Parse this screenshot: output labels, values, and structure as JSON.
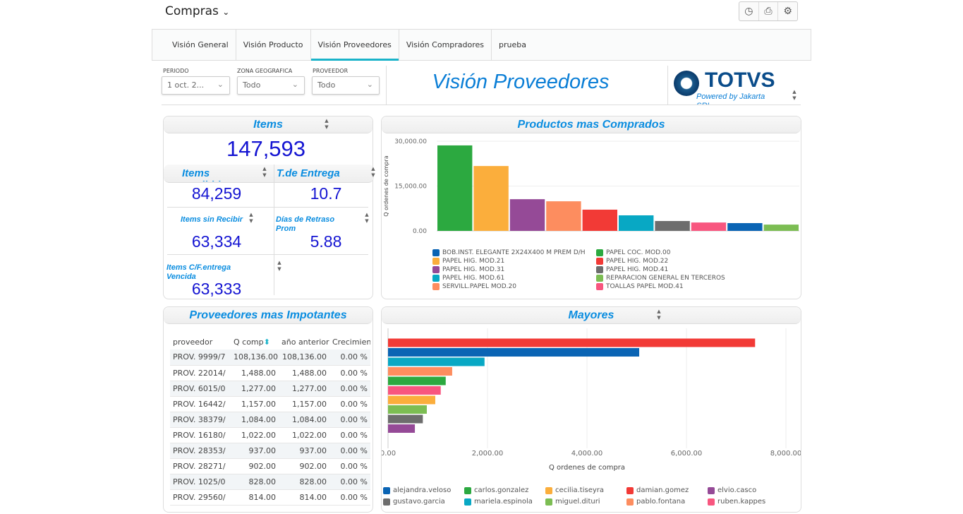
{
  "header": {
    "title": "Compras",
    "chevron": "⌄",
    "toolbar": [
      {
        "icon": "clock-icon",
        "glyph": "◷"
      },
      {
        "icon": "print-icon",
        "glyph": "⎙"
      },
      {
        "icon": "gear-icon",
        "glyph": "⚙"
      }
    ]
  },
  "tabs": [
    {
      "label": "Visión General"
    },
    {
      "label": "Visión Producto"
    },
    {
      "label": "Visión Proveedores",
      "active": true
    },
    {
      "label": "Visión Compradores"
    },
    {
      "label": "prueba"
    }
  ],
  "filters": [
    {
      "label": "PERIODO",
      "value": "1 oct. 2..."
    },
    {
      "label": "ZONA GEOGRAFICA",
      "value": "Todo"
    },
    {
      "label": "PROVEEDOR",
      "value": "Todo"
    }
  ],
  "page_heading": "Visión Proveedores",
  "logo": {
    "text": "TOTVS",
    "tagline": "Powered by Jakarta SRL"
  },
  "kpis": {
    "title": "Items",
    "total": "147,593",
    "items": [
      {
        "label": "Items Recibidos",
        "value": "84,259"
      },
      {
        "label": "T.de Entrega Prom",
        "value": "10.7"
      },
      {
        "label": "Items sin Recibir",
        "value": "63,334"
      },
      {
        "label": "Días de Retraso Prom",
        "value": "5.88"
      },
      {
        "label": "Items C/F.entrega Vencida",
        "value": "63,333"
      }
    ]
  },
  "proveedores": {
    "title": "Proveedores mas Impotantes",
    "columns": [
      "proveedor",
      "Q comp",
      "año anterior",
      "Crecimient"
    ],
    "rows": [
      [
        "PROV. 9999/7",
        "108,136.00",
        "108,136.00",
        "0.00 %"
      ],
      [
        "PROV. 22014/",
        "1,488.00",
        "1,488.00",
        "0.00 %"
      ],
      [
        "PROV. 6015/0",
        "1,277.00",
        "1,277.00",
        "0.00 %"
      ],
      [
        "PROV. 16442/",
        "1,157.00",
        "1,157.00",
        "0.00 %"
      ],
      [
        "PROV. 38379/",
        "1,084.00",
        "1,084.00",
        "0.00 %"
      ],
      [
        "PROV. 16180/",
        "1,022.00",
        "1,022.00",
        "0.00 %"
      ],
      [
        "PROV. 28353/",
        "937.00",
        "937.00",
        "0.00 %"
      ],
      [
        "PROV. 28271/",
        "902.00",
        "902.00",
        "0.00 %"
      ],
      [
        "PROV. 1025/0",
        "828.00",
        "828.00",
        "0.00 %"
      ],
      [
        "PROV. 29560/",
        "814.00",
        "814.00",
        "0.00 %"
      ]
    ]
  },
  "chart_data": [
    {
      "type": "bar",
      "title": "Productos mas Comprados",
      "ylabel": "Q ordenes de compra",
      "xlabel": "",
      "ylim": [
        0,
        30000
      ],
      "yticks": [
        "0.00",
        "15,000.00",
        "30,000.00"
      ],
      "grid": true,
      "legend": "bottom",
      "categories": [
        "PAPEL COC. MOD.00",
        "PAPEL HIG. MOD.21",
        "PAPEL HIG. MOD.31",
        "SERVILL.PAPEL MOD.20",
        "PAPEL HIG. MOD.22",
        "PAPEL HIG. MOD.61",
        "PAPEL HIG. MOD.41",
        "TOALLAS PAPEL MOD.41",
        "BOB.INST. ELEGANTE 2X24X400 M PREM D/H",
        "REPARACION GENERAL EN TERCEROS"
      ],
      "values": [
        28600,
        21700,
        10600,
        9900,
        7100,
        5200,
        3300,
        2800,
        2600,
        2100
      ],
      "colors": [
        "#2ca940",
        "#fbae3c",
        "#954a97",
        "#fd8d5f",
        "#f23a36",
        "#08a8c4",
        "#6d6d6d",
        "#f8567f",
        "#0a64b4",
        "#7cbd53"
      ],
      "legend_order": [
        "BOB.INST. ELEGANTE 2X24X400 M PREM D/H",
        "PAPEL COC. MOD.00",
        "PAPEL HIG. MOD.21",
        "PAPEL HIG. MOD.22",
        "PAPEL HIG. MOD.31",
        "PAPEL HIG. MOD.41",
        "PAPEL HIG. MOD.61",
        "REPARACION GENERAL EN TERCEROS",
        "SERVILL.PAPEL MOD.20",
        "TOALLAS PAPEL MOD.41"
      ]
    },
    {
      "type": "bar",
      "orientation": "horizontal",
      "title": "Mayores",
      "xlabel": "Q ordenes de compra",
      "xlim": [
        0,
        8000
      ],
      "xticks": [
        "0.00",
        "2,000.00",
        "4,000.00",
        "6,000.00",
        "8,000.00"
      ],
      "grid": true,
      "legend": "bottom",
      "categories": [
        "damian.gomez",
        "alejandra.veloso",
        "mariela.espinola",
        "pablo.fontana",
        "carlos.gonzalez",
        "ruben.kappes",
        "cecilia.tiseyra",
        "miguel.dituri",
        "gustavo.garcia",
        "elvio.casco"
      ],
      "values": [
        7380,
        5050,
        1940,
        1290,
        1160,
        1060,
        950,
        780,
        700,
        540
      ],
      "colors": [
        "#f23a36",
        "#0a64b4",
        "#08a8c4",
        "#fd8d5f",
        "#2ca940",
        "#f8567f",
        "#fbae3c",
        "#7cbd53",
        "#6d6d6d",
        "#954a97"
      ],
      "legend_order": [
        "alejandra.veloso",
        "carlos.gonzalez",
        "cecilia.tiseyra",
        "damian.gomez",
        "elvio.casco",
        "gustavo.garcia",
        "mariela.espinola",
        "miguel.dituri",
        "pablo.fontana",
        "ruben.kappes"
      ]
    }
  ]
}
